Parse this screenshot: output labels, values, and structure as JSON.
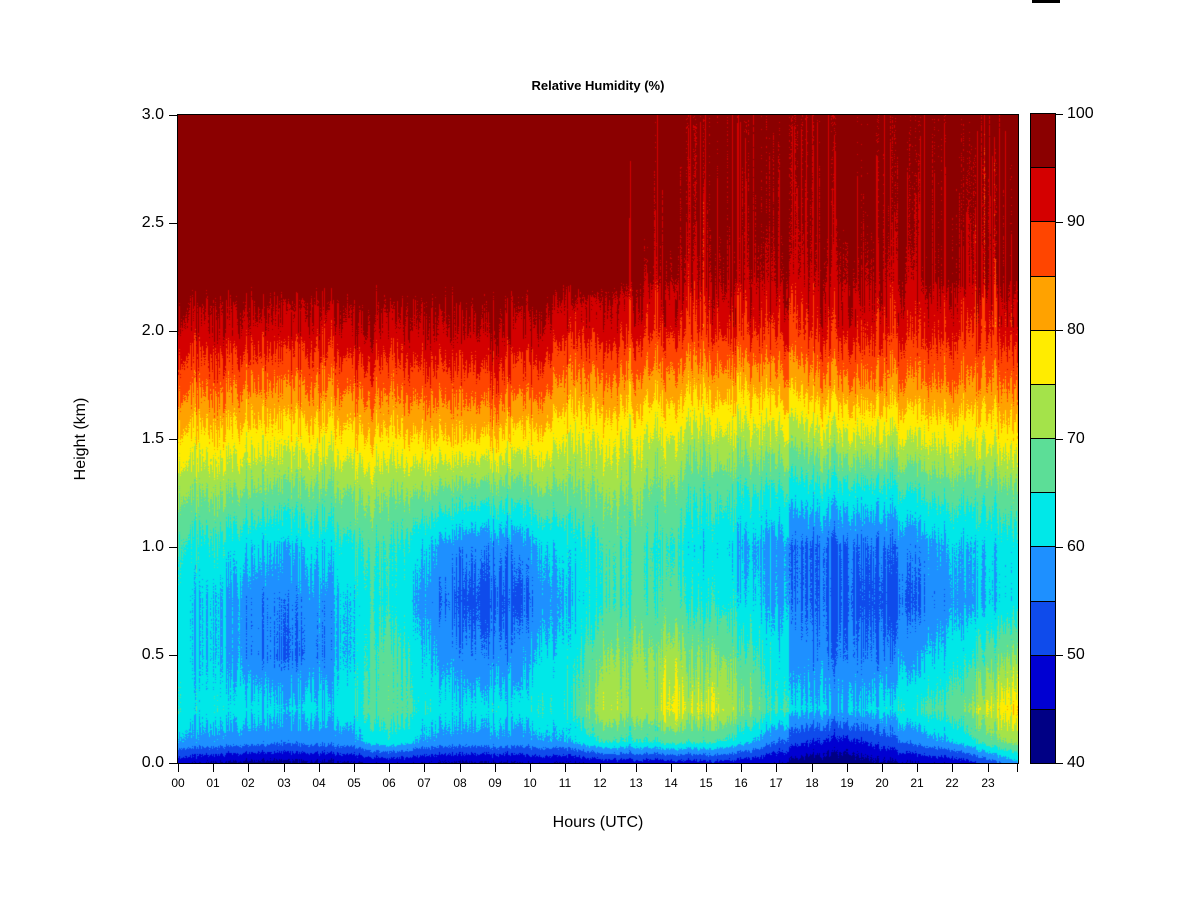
{
  "title": "Relative Humidity (%)",
  "xlabel": "Hours (UTC)",
  "ylabel": "Height (km)",
  "decoration": {
    "top_edge_artifact_color": "#000000"
  },
  "x_axis": {
    "labels": [
      "00",
      "01",
      "02",
      "03",
      "04",
      "05",
      "06",
      "07",
      "08",
      "09",
      "10",
      "11",
      "12",
      "13",
      "14",
      "15",
      "16",
      "17",
      "18",
      "19",
      "20",
      "21",
      "22",
      "23"
    ],
    "values": [
      0,
      1,
      2,
      3,
      4,
      5,
      6,
      7,
      8,
      9,
      10,
      11,
      12,
      13,
      14,
      15,
      16,
      17,
      18,
      19,
      20,
      21,
      22,
      23
    ]
  },
  "y_axis": {
    "labels": [
      "0.0",
      "0.5",
      "1.0",
      "1.5",
      "2.0",
      "2.5",
      "3.0"
    ],
    "values": [
      0,
      0.5,
      1,
      1.5,
      2,
      2.5,
      3
    ]
  },
  "colorbar": {
    "tick_labels": [
      "40",
      "50",
      "60",
      "70",
      "80",
      "90",
      "100"
    ],
    "tick_values": [
      40,
      50,
      60,
      70,
      80,
      90,
      100
    ],
    "bin_edges": [
      40,
      45,
      50,
      55,
      60,
      65,
      70,
      75,
      80,
      85,
      90,
      95,
      100
    ],
    "colors_bottom_to_top": [
      "#000085",
      "#0000D2",
      "#0F4BEB",
      "#1E90FF",
      "#00E8E8",
      "#5CDE97",
      "#A4E34A",
      "#FFEC00",
      "#FFA200",
      "#FF4500",
      "#D40000",
      "#8B0000"
    ]
  },
  "chart_data": {
    "type": "heatmap",
    "title": "Relative Humidity (%)",
    "xlabel": "Hours (UTC)",
    "ylabel": "Height (km)",
    "xlim": [
      0,
      24
    ],
    "ylim": [
      0,
      3
    ],
    "zlim": [
      40,
      100
    ],
    "legend_position": "right-colorbar",
    "grid": false,
    "hours": [
      0,
      1,
      2,
      3,
      4,
      5,
      6,
      7,
      8,
      9,
      10,
      11,
      12,
      13,
      14,
      15,
      16,
      17,
      18,
      19,
      20,
      21,
      22,
      23,
      24
    ],
    "heights_km": [
      0,
      0.1,
      0.25,
      0.5,
      0.75,
      1,
      1.25,
      1.5,
      1.75,
      2,
      2.25,
      2.5,
      2.75,
      3
    ],
    "values_percent_rh": [
      [
        46,
        59,
        63,
        62,
        62,
        64,
        70,
        78,
        86,
        93,
        98,
        98,
        98,
        98
      ],
      [
        44,
        58,
        62,
        60,
        60,
        63,
        70,
        78,
        86,
        93,
        98,
        98,
        98,
        98
      ],
      [
        43,
        57,
        62,
        57,
        57,
        61,
        69,
        77,
        85,
        93,
        98,
        98,
        98,
        98
      ],
      [
        43,
        56,
        61,
        55,
        56,
        60,
        68,
        77,
        85,
        93,
        98,
        98,
        98,
        98
      ],
      [
        44,
        57,
        62,
        57,
        58,
        62,
        69,
        78,
        86,
        93,
        98,
        98,
        98,
        98
      ],
      [
        44,
        58,
        63,
        61,
        61,
        64,
        70,
        78,
        86,
        94,
        98,
        98,
        98,
        98
      ],
      [
        46,
        64,
        69,
        68,
        65,
        66,
        71,
        79,
        87,
        94,
        98,
        98,
        98,
        98
      ],
      [
        45,
        59,
        64,
        61,
        58,
        61,
        70,
        80,
        88,
        95,
        98,
        98,
        98,
        98
      ],
      [
        44,
        58,
        62,
        57,
        54,
        57,
        68,
        80,
        88,
        95,
        98,
        98,
        98,
        98
      ],
      [
        44,
        58,
        62,
        56,
        53,
        56,
        67,
        79,
        88,
        95,
        98,
        98,
        98,
        98
      ],
      [
        45,
        58,
        63,
        59,
        55,
        58,
        68,
        78,
        87,
        94,
        98,
        98,
        98,
        98
      ],
      [
        45,
        60,
        65,
        63,
        61,
        63,
        70,
        77,
        85,
        93,
        98,
        98,
        98,
        98
      ],
      [
        46,
        65,
        73,
        69,
        64,
        65,
        70,
        76,
        84,
        92,
        97,
        98,
        98,
        98
      ],
      [
        47,
        64,
        72,
        70,
        66,
        66,
        70,
        75,
        83,
        91,
        96,
        97,
        97,
        97
      ],
      [
        47,
        66,
        75,
        71,
        66,
        64,
        68,
        74,
        82,
        90,
        95,
        96,
        96,
        96
      ],
      [
        48,
        66,
        75,
        70,
        64,
        62,
        66,
        73,
        82,
        90,
        95,
        96,
        96,
        96
      ],
      [
        47,
        62,
        71,
        67,
        62,
        60,
        65,
        73,
        81,
        90,
        95,
        96,
        96,
        96
      ],
      [
        45,
        55,
        65,
        62,
        59,
        58,
        64,
        73,
        82,
        90,
        95,
        96,
        96,
        96
      ],
      [
        42,
        50,
        61,
        57,
        55,
        55,
        63,
        73,
        83,
        91,
        95,
        96,
        96,
        96
      ],
      [
        41,
        48,
        59,
        55,
        53,
        54,
        62,
        73,
        83,
        91,
        95,
        96,
        96,
        96
      ],
      [
        44,
        52,
        62,
        56,
        53,
        55,
        63,
        74,
        84,
        91,
        95,
        96,
        96,
        96
      ],
      [
        45,
        57,
        65,
        59,
        55,
        57,
        65,
        75,
        84,
        91,
        95,
        96,
        96,
        96
      ],
      [
        46,
        60,
        67,
        62,
        58,
        60,
        67,
        76,
        85,
        91,
        96,
        96,
        96,
        96
      ],
      [
        52,
        68,
        76,
        68,
        61,
        62,
        68,
        77,
        85,
        91,
        96,
        96,
        96,
        97
      ],
      [
        60,
        72,
        78,
        70,
        62,
        62,
        68,
        77,
        85,
        92,
        96,
        96,
        96,
        97
      ]
    ]
  }
}
